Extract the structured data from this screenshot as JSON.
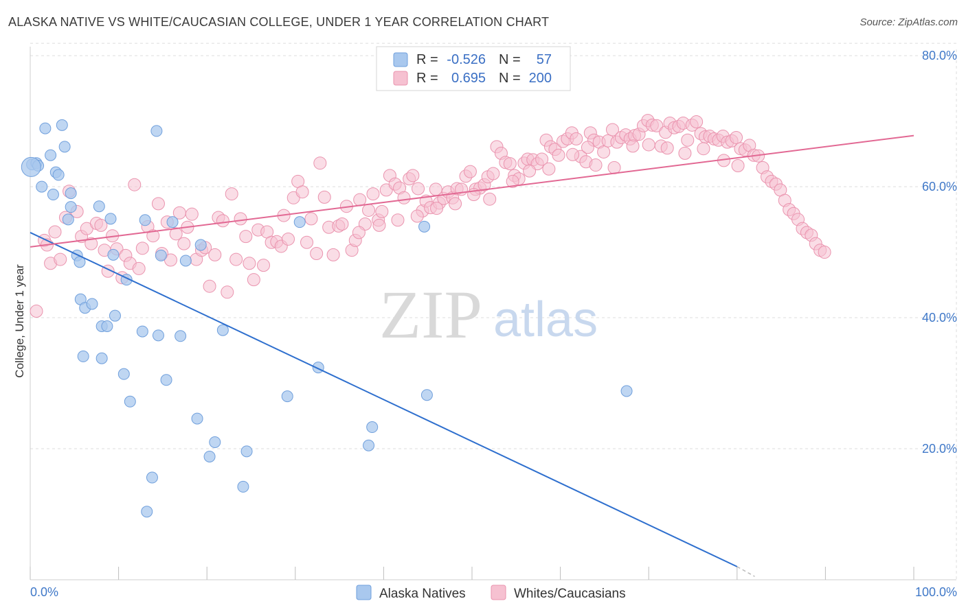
{
  "title": "ALASKA NATIVE VS WHITE/CAUCASIAN COLLEGE, UNDER 1 YEAR CORRELATION CHART",
  "source": "Source: ZipAtlas.com",
  "watermark": {
    "zip": "ZIP",
    "atlas": "atlas"
  },
  "colors": {
    "blue_fill": "#a9c8ee",
    "blue_stroke": "#6f9fdc",
    "blue_line": "#2e6fce",
    "pink_fill": "#f6c1d1",
    "pink_stroke": "#ea93ae",
    "pink_line": "#e26893",
    "tick_text": "#3f78c8",
    "grid": "#dddddd"
  },
  "legend": {
    "rows": [
      {
        "r_label": "R =",
        "r_value": "-0.526",
        "n_label": "N =",
        "n_value": "57"
      },
      {
        "r_label": "R =",
        "r_value": "0.695",
        "n_label": "N =",
        "n_value": "200"
      }
    ]
  },
  "bottom_legend": [
    "Alaska Natives",
    "Whites/Caucasians"
  ],
  "chart_data": {
    "type": "scatter",
    "xlabel": "",
    "ylabel": "College, Under 1 year",
    "xlim": [
      0,
      100
    ],
    "ylim": [
      0,
      82
    ],
    "x_tick_labels": [
      "0.0%",
      "100.0%"
    ],
    "y_ticks": [
      20,
      40,
      60,
      80
    ],
    "y_tick_labels": [
      "20.0%",
      "40.0%",
      "60.0%",
      "80.0%"
    ],
    "grid": true,
    "legend_position": "top-center",
    "series": [
      {
        "name": "Alaska Natives",
        "color": "#a9c8ee",
        "trend": {
          "x": [
            0,
            80
          ],
          "y": [
            53.0,
            2.0
          ],
          "dashed_to": [
            82,
            0.5
          ]
        },
        "points": [
          [
            0.2,
            63.4
          ],
          [
            0.7,
            63.6
          ],
          [
            0.9,
            63.2
          ],
          [
            1.3,
            60.0
          ],
          [
            1.7,
            68.9
          ],
          [
            2.3,
            64.8
          ],
          [
            2.6,
            58.8
          ],
          [
            2.9,
            62.2
          ],
          [
            3.2,
            61.8
          ],
          [
            3.6,
            69.4
          ],
          [
            3.9,
            66.1
          ],
          [
            4.3,
            55.0
          ],
          [
            4.6,
            56.9
          ],
          [
            4.6,
            59.0
          ],
          [
            5.3,
            49.5
          ],
          [
            5.6,
            48.5
          ],
          [
            5.7,
            42.8
          ],
          [
            6.2,
            41.5
          ],
          [
            6.0,
            34.1
          ],
          [
            7.0,
            42.1
          ],
          [
            7.8,
            57.0
          ],
          [
            8.1,
            38.7
          ],
          [
            8.1,
            33.8
          ],
          [
            8.7,
            38.7
          ],
          [
            9.1,
            55.1
          ],
          [
            9.4,
            49.6
          ],
          [
            9.6,
            40.3
          ],
          [
            10.6,
            31.4
          ],
          [
            10.9,
            45.8
          ],
          [
            11.3,
            27.2
          ],
          [
            12.7,
            37.9
          ],
          [
            13.0,
            54.9
          ],
          [
            13.2,
            10.4
          ],
          [
            13.8,
            15.6
          ],
          [
            14.3,
            68.5
          ],
          [
            14.5,
            37.3
          ],
          [
            14.8,
            49.5
          ],
          [
            15.4,
            30.5
          ],
          [
            16.1,
            54.6
          ],
          [
            17.0,
            37.2
          ],
          [
            17.6,
            48.7
          ],
          [
            18.9,
            24.6
          ],
          [
            19.3,
            51.1
          ],
          [
            20.3,
            18.8
          ],
          [
            20.9,
            21.0
          ],
          [
            21.8,
            38.1
          ],
          [
            24.1,
            14.2
          ],
          [
            24.5,
            19.6
          ],
          [
            29.1,
            28.0
          ],
          [
            30.5,
            54.6
          ],
          [
            32.6,
            32.4
          ],
          [
            38.3,
            20.5
          ],
          [
            38.7,
            23.3
          ],
          [
            44.6,
            53.9
          ],
          [
            44.9,
            28.2
          ],
          [
            67.5,
            28.8
          ],
          [
            0.1,
            63.0
          ]
        ]
      },
      {
        "name": "Whites/Caucasians",
        "color": "#f6c1d1",
        "trend": {
          "x": [
            0,
            100
          ],
          "y": [
            50.8,
            67.8
          ]
        },
        "points": [
          [
            0.7,
            41.0
          ],
          [
            1.6,
            51.8
          ],
          [
            1.9,
            51.1
          ],
          [
            2.3,
            48.3
          ],
          [
            2.8,
            53.1
          ],
          [
            3.4,
            48.9
          ],
          [
            4.0,
            55.3
          ],
          [
            4.4,
            59.3
          ],
          [
            5.3,
            56.2
          ],
          [
            5.8,
            52.4
          ],
          [
            6.4,
            53.6
          ],
          [
            6.9,
            51.3
          ],
          [
            7.5,
            54.4
          ],
          [
            8.0,
            54.1
          ],
          [
            8.4,
            50.3
          ],
          [
            8.8,
            47.1
          ],
          [
            9.3,
            52.5
          ],
          [
            9.8,
            50.5
          ],
          [
            10.4,
            46.1
          ],
          [
            10.8,
            49.5
          ],
          [
            11.3,
            48.3
          ],
          [
            11.8,
            60.3
          ],
          [
            12.3,
            47.5
          ],
          [
            12.7,
            50.6
          ],
          [
            13.3,
            53.9
          ],
          [
            13.9,
            52.5
          ],
          [
            14.5,
            57.4
          ],
          [
            14.9,
            49.8
          ],
          [
            15.5,
            54.6
          ],
          [
            15.9,
            48.8
          ],
          [
            16.5,
            52.8
          ],
          [
            16.9,
            56.0
          ],
          [
            17.4,
            51.3
          ],
          [
            17.8,
            53.8
          ],
          [
            18.3,
            55.8
          ],
          [
            18.8,
            48.9
          ],
          [
            19.4,
            50.3
          ],
          [
            19.8,
            50.7
          ],
          [
            20.3,
            44.8
          ],
          [
            20.9,
            49.6
          ],
          [
            21.3,
            55.3
          ],
          [
            21.8,
            54.8
          ],
          [
            22.3,
            43.9
          ],
          [
            22.8,
            58.9
          ],
          [
            23.3,
            48.9
          ],
          [
            23.8,
            55.1
          ],
          [
            24.4,
            52.4
          ],
          [
            24.8,
            48.3
          ],
          [
            25.3,
            45.8
          ],
          [
            25.8,
            53.4
          ],
          [
            26.4,
            48.0
          ],
          [
            26.8,
            53.1
          ],
          [
            27.3,
            51.5
          ],
          [
            27.9,
            51.6
          ],
          [
            28.4,
            50.9
          ],
          [
            28.7,
            55.6
          ],
          [
            29.2,
            52.0
          ],
          [
            29.8,
            58.3
          ],
          [
            30.3,
            60.8
          ],
          [
            30.8,
            59.2
          ],
          [
            31.3,
            51.5
          ],
          [
            31.8,
            55.1
          ],
          [
            32.4,
            49.8
          ],
          [
            32.8,
            63.6
          ],
          [
            33.3,
            58.4
          ],
          [
            33.8,
            53.8
          ],
          [
            34.3,
            49.6
          ],
          [
            34.9,
            54.0
          ],
          [
            35.3,
            54.3
          ],
          [
            35.8,
            57.0
          ],
          [
            36.4,
            50.3
          ],
          [
            36.8,
            51.8
          ],
          [
            37.3,
            58.0
          ],
          [
            37.9,
            54.3
          ],
          [
            38.3,
            56.4
          ],
          [
            38.8,
            58.9
          ],
          [
            39.4,
            54.9
          ],
          [
            39.8,
            56.2
          ],
          [
            40.3,
            59.5
          ],
          [
            40.7,
            61.7
          ],
          [
            41.3,
            60.4
          ],
          [
            41.8,
            59.8
          ],
          [
            42.3,
            58.3
          ],
          [
            42.9,
            61.2
          ],
          [
            43.3,
            61.7
          ],
          [
            43.9,
            59.7
          ],
          [
            44.4,
            56.3
          ],
          [
            44.8,
            57.8
          ],
          [
            45.3,
            56.8
          ],
          [
            45.9,
            59.6
          ],
          [
            46.3,
            57.5
          ],
          [
            46.8,
            58.2
          ],
          [
            47.3,
            59.2
          ],
          [
            47.8,
            58.3
          ],
          [
            48.3,
            59.7
          ],
          [
            48.8,
            59.6
          ],
          [
            49.3,
            61.6
          ],
          [
            49.8,
            62.3
          ],
          [
            50.4,
            59.6
          ],
          [
            50.9,
            59.8
          ],
          [
            51.4,
            60.3
          ],
          [
            51.8,
            61.5
          ],
          [
            52.4,
            62.0
          ],
          [
            52.8,
            66.1
          ],
          [
            53.3,
            65.1
          ],
          [
            53.8,
            63.7
          ],
          [
            54.3,
            63.5
          ],
          [
            54.8,
            61.7
          ],
          [
            55.3,
            61.2
          ],
          [
            55.9,
            63.6
          ],
          [
            56.3,
            64.2
          ],
          [
            56.9,
            64.1
          ],
          [
            57.4,
            63.5
          ],
          [
            57.9,
            64.2
          ],
          [
            58.4,
            67.1
          ],
          [
            58.9,
            66.1
          ],
          [
            59.4,
            65.7
          ],
          [
            59.8,
            64.8
          ],
          [
            60.3,
            66.9
          ],
          [
            60.8,
            67.3
          ],
          [
            61.3,
            68.2
          ],
          [
            61.8,
            67.3
          ],
          [
            62.3,
            64.6
          ],
          [
            62.9,
            63.8
          ],
          [
            63.4,
            68.2
          ],
          [
            63.8,
            67.1
          ],
          [
            64.4,
            66.8
          ],
          [
            64.9,
            65.3
          ],
          [
            65.4,
            67.0
          ],
          [
            65.9,
            68.7
          ],
          [
            66.4,
            66.8
          ],
          [
            66.9,
            67.5
          ],
          [
            67.4,
            67.9
          ],
          [
            67.9,
            67.3
          ],
          [
            68.4,
            67.8
          ],
          [
            68.9,
            68.0
          ],
          [
            69.4,
            69.3
          ],
          [
            69.9,
            70.1
          ],
          [
            70.4,
            69.4
          ],
          [
            70.9,
            69.3
          ],
          [
            71.4,
            66.2
          ],
          [
            71.9,
            68.3
          ],
          [
            72.4,
            69.7
          ],
          [
            72.9,
            69.0
          ],
          [
            73.4,
            69.2
          ],
          [
            73.9,
            69.7
          ],
          [
            74.4,
            67.1
          ],
          [
            74.9,
            69.4
          ],
          [
            75.4,
            69.9
          ],
          [
            75.9,
            68.1
          ],
          [
            76.4,
            67.6
          ],
          [
            76.9,
            67.7
          ],
          [
            77.4,
            67.3
          ],
          [
            77.9,
            67.1
          ],
          [
            78.4,
            67.7
          ],
          [
            78.9,
            66.8
          ],
          [
            79.4,
            67.0
          ],
          [
            79.9,
            67.5
          ],
          [
            80.4,
            65.8
          ],
          [
            80.9,
            65.6
          ],
          [
            81.4,
            66.3
          ],
          [
            81.9,
            64.8
          ],
          [
            82.4,
            64.7
          ],
          [
            82.9,
            62.9
          ],
          [
            83.4,
            61.5
          ],
          [
            83.9,
            60.8
          ],
          [
            84.4,
            60.4
          ],
          [
            84.9,
            59.5
          ],
          [
            85.4,
            57.9
          ],
          [
            85.9,
            56.5
          ],
          [
            86.4,
            55.9
          ],
          [
            86.9,
            55.0
          ],
          [
            87.4,
            53.6
          ],
          [
            87.9,
            53.0
          ],
          [
            88.4,
            52.6
          ],
          [
            88.9,
            51.3
          ],
          [
            89.4,
            50.3
          ],
          [
            89.9,
            50.0
          ],
          [
            61.4,
            64.9
          ],
          [
            64.0,
            63.3
          ],
          [
            66.1,
            62.9
          ],
          [
            68.2,
            66.2
          ],
          [
            70.0,
            66.4
          ],
          [
            72.1,
            65.9
          ],
          [
            74.1,
            65.1
          ],
          [
            76.2,
            65.8
          ],
          [
            78.5,
            64.0
          ],
          [
            80.1,
            63.2
          ],
          [
            63.1,
            66.0
          ],
          [
            58.7,
            62.7
          ],
          [
            56.5,
            62.4
          ],
          [
            54.6,
            60.8
          ],
          [
            52.0,
            58.1
          ],
          [
            50.2,
            58.8
          ],
          [
            48.1,
            57.4
          ],
          [
            46.0,
            56.7
          ],
          [
            43.8,
            55.5
          ],
          [
            41.6,
            54.9
          ],
          [
            39.5,
            54.1
          ],
          [
            37.2,
            53.0
          ]
        ]
      }
    ]
  }
}
